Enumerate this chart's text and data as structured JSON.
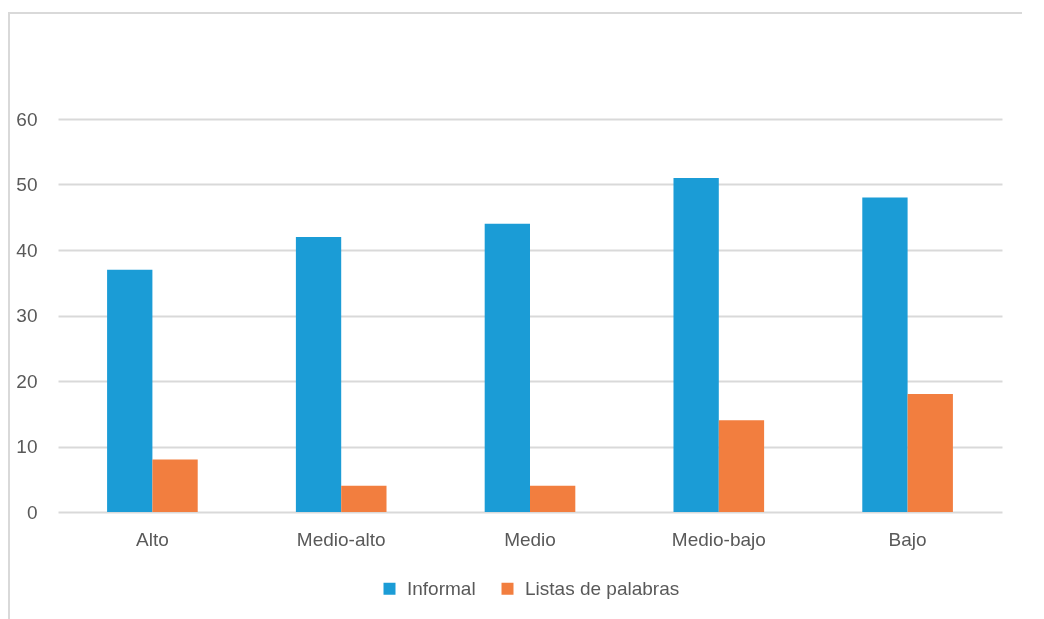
{
  "chart_data": {
    "type": "bar",
    "categories": [
      "Alto",
      "Medio-alto",
      "Medio",
      "Medio-bajo",
      "Bajo"
    ],
    "series": [
      {
        "name": "Informal",
        "color": "#1b9cd6",
        "values": [
          37,
          42,
          44,
          51,
          48
        ]
      },
      {
        "name": "Listas de palabras",
        "color": "#f27e3f",
        "values": [
          8,
          4,
          4,
          14,
          18
        ]
      }
    ],
    "ylim": [
      0,
      60
    ],
    "yticks": [
      0,
      10,
      20,
      30,
      40,
      50,
      60
    ],
    "grid": "y",
    "legend": "bottom"
  }
}
